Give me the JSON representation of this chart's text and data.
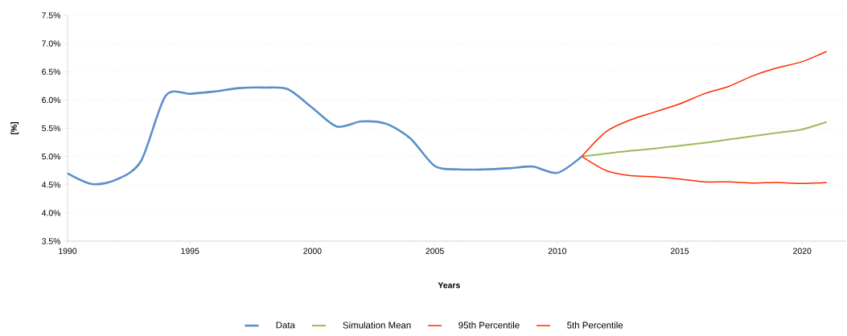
{
  "chart_data": {
    "type": "line",
    "xlabel": "Years",
    "ylabel": "[%]",
    "xlim": [
      1990,
      2021.8
    ],
    "xticks": [
      1990,
      1995,
      2000,
      2005,
      2010,
      2015,
      2020
    ],
    "ylim": [
      3.5,
      7.5
    ],
    "yticks": [
      {
        "value": 3.5,
        "label": "3.5%"
      },
      {
        "value": 4.0,
        "label": "4.0%"
      },
      {
        "value": 4.5,
        "label": "4.5%"
      },
      {
        "value": 5.0,
        "label": "5.0%"
      },
      {
        "value": 5.5,
        "label": "5.5%"
      },
      {
        "value": 6.0,
        "label": "6.0%"
      },
      {
        "value": 6.5,
        "label": "6.5%"
      },
      {
        "value": 7.0,
        "label": "7.0%"
      },
      {
        "value": 7.5,
        "label": "7.5%"
      }
    ],
    "grid": "y",
    "legend": "bottom",
    "marker": "none",
    "line_style": "solid",
    "series": [
      {
        "name": "Data",
        "color": "#5b8fc9",
        "x": [
          1990,
          1991,
          1992,
          1993,
          1994,
          1995,
          1996,
          1997,
          1998,
          1999,
          2000,
          2001,
          2002,
          2003,
          2004,
          2005,
          2006,
          2007,
          2008,
          2009,
          2010,
          2011
        ],
        "values": [
          4.7,
          4.51,
          4.59,
          4.92,
          6.07,
          6.11,
          6.15,
          6.21,
          6.22,
          6.19,
          5.86,
          5.53,
          5.62,
          5.58,
          5.32,
          4.83,
          4.77,
          4.77,
          4.79,
          4.82,
          4.71,
          5.0
        ]
      },
      {
        "name": "Simulation Mean",
        "color": "#9bbb59",
        "x": [
          2011,
          2012,
          2013,
          2014,
          2015,
          2016,
          2017,
          2018,
          2019,
          2020,
          2021
        ],
        "values": [
          5.0,
          5.05,
          5.1,
          5.14,
          5.19,
          5.24,
          5.3,
          5.36,
          5.42,
          5.48,
          5.61
        ]
      },
      {
        "name": "95th Percentile",
        "color": "#ff2a00",
        "x": [
          2011,
          2012,
          2013,
          2014,
          2015,
          2016,
          2017,
          2018,
          2019,
          2020,
          2021
        ],
        "values": [
          5.0,
          5.44,
          5.65,
          5.79,
          5.93,
          6.11,
          6.24,
          6.43,
          6.57,
          6.68,
          6.86
        ]
      },
      {
        "name": "5th Percentile",
        "color": "#ff2a00",
        "x": [
          2011,
          2012,
          2013,
          2014,
          2015,
          2016,
          2017,
          2018,
          2019,
          2020,
          2021
        ],
        "values": [
          5.0,
          4.75,
          4.66,
          4.64,
          4.6,
          4.55,
          4.55,
          4.53,
          4.54,
          4.52,
          4.54
        ]
      }
    ]
  }
}
